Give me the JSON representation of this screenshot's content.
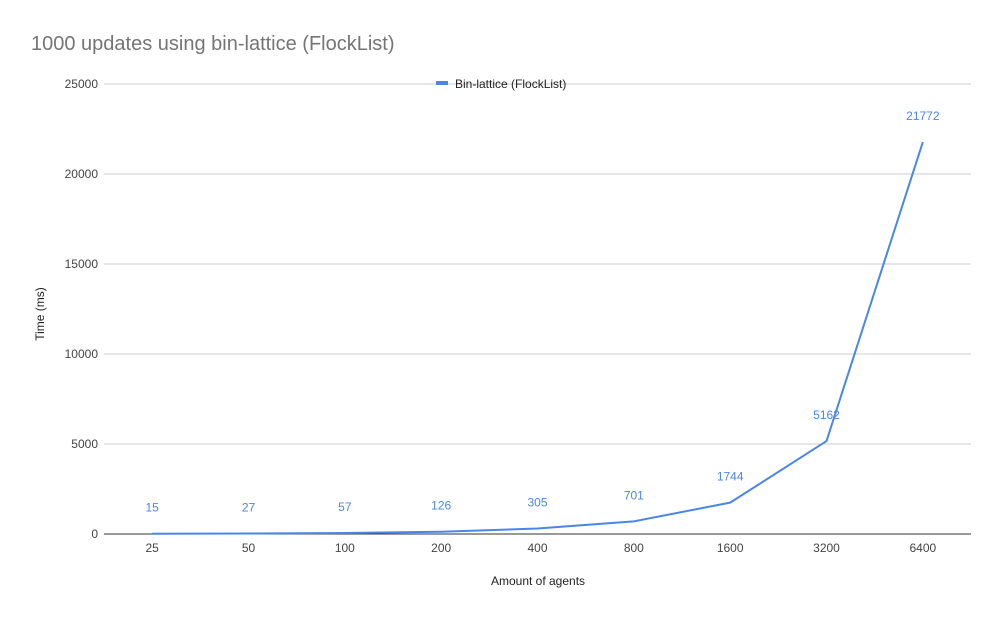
{
  "chart_data": {
    "type": "line",
    "title": "1000 updates using bin-lattice (FlockList)",
    "xlabel": "Amount of agents",
    "ylabel": "Time (ms)",
    "categories": [
      "25",
      "50",
      "100",
      "200",
      "400",
      "800",
      "1600",
      "3200",
      "6400"
    ],
    "series": [
      {
        "name": "Bin-lattice (FlockList)",
        "color": "#4a86e8",
        "values": [
          15,
          27,
          57,
          126,
          305,
          701,
          1744,
          5162,
          21772
        ],
        "data_labels": [
          "15",
          "27",
          "57",
          "126",
          "305",
          "701",
          "1744",
          "5162",
          "21772"
        ]
      }
    ],
    "ylim": [
      0,
      25000
    ],
    "yticks": [
      0,
      5000,
      10000,
      15000,
      20000,
      25000
    ],
    "ytick_labels": [
      "0",
      "5000",
      "10000",
      "15000",
      "20000",
      "25000"
    ],
    "grid": true,
    "legend_position": "top-center"
  }
}
